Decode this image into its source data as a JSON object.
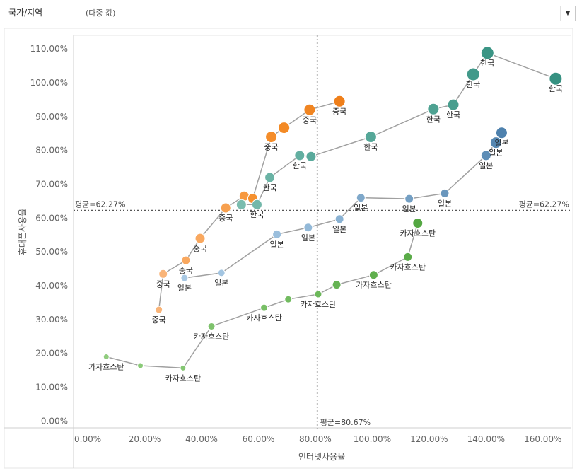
{
  "filter": {
    "label": "국가/지역",
    "value": "(다중 값)",
    "arrow_icon": "dropdown-arrow-icon"
  },
  "chart_data": {
    "type": "scatter",
    "xlabel": "인터넷사용율",
    "ylabel": "휴대폰사용율",
    "xlim": [
      -5,
      170
    ],
    "ylim": [
      -2,
      114
    ],
    "x_ticks": [
      "0.00%",
      "20.00%",
      "40.00%",
      "60.00%",
      "80.00%",
      "100.00%",
      "120.00%",
      "140.00%",
      "160.00%"
    ],
    "x_tick_values": [
      0,
      20,
      40,
      60,
      80,
      100,
      120,
      140,
      160
    ],
    "y_ticks": [
      "0.00%",
      "10.00%",
      "20.00%",
      "30.00%",
      "40.00%",
      "50.00%",
      "60.00%",
      "70.00%",
      "80.00%",
      "90.00%",
      "100.00%",
      "110.00%"
    ],
    "y_tick_values": [
      0,
      10,
      20,
      30,
      40,
      50,
      60,
      70,
      80,
      90,
      100,
      110
    ],
    "ref_lines": {
      "x": {
        "value": 80.67,
        "label": "평균=80.67%"
      },
      "y": {
        "value": 62.27,
        "label": "평균=62.27%",
        "label_left": "평균=62.27%"
      }
    },
    "series": [
      {
        "name": "중국",
        "colors": [
          "#f9b478",
          "#f9b478",
          "#f9a85f",
          "#f9a85f",
          "#f7a04f",
          "#f7993f",
          "#f5902e",
          "#f58d2a",
          "#f38a25",
          "#f08522",
          "#ef7f1a"
        ],
        "points": [
          {
            "x": 25,
            "y": 32.9,
            "label": "중국"
          },
          {
            "x": 26.5,
            "y": 43.5,
            "label": "중국"
          },
          {
            "x": 34.5,
            "y": 47.5,
            "label": "중국"
          },
          {
            "x": 39.5,
            "y": 54,
            "label": "중국"
          },
          {
            "x": 48.5,
            "y": 63,
            "label": "중국"
          },
          {
            "x": 55,
            "y": 66.5,
            "label": ""
          },
          {
            "x": 58,
            "y": 65.8,
            "label": ""
          },
          {
            "x": 64.5,
            "y": 84,
            "label": "중국"
          },
          {
            "x": 69,
            "y": 86.7,
            "label": ""
          },
          {
            "x": 78,
            "y": 92,
            "label": "중국"
          },
          {
            "x": 88.5,
            "y": 94.5,
            "label": "중국"
          }
        ],
        "sizes": [
          5,
          6,
          6,
          7,
          7,
          7,
          7,
          8,
          8,
          8,
          8
        ]
      },
      {
        "name": "한국",
        "colors": [
          "#7bbcae",
          "#73b8aa",
          "#6ab3a5",
          "#63afa1",
          "#5aaa9c",
          "#55a798",
          "#4ea292",
          "#489e8e",
          "#42998a",
          "#3b9585",
          "#369181",
          "#308c7c"
        ],
        "points": [
          {
            "x": 54,
            "y": 64,
            "label": ""
          },
          {
            "x": 59.5,
            "y": 64,
            "label": "한국"
          },
          {
            "x": 64,
            "y": 72,
            "label": "한국"
          },
          {
            "x": 74.5,
            "y": 78.5,
            "label": "한국"
          },
          {
            "x": 78.5,
            "y": 78.2,
            "label": ""
          },
          {
            "x": 99.5,
            "y": 84,
            "label": "한국"
          },
          {
            "x": 121.5,
            "y": 92.2,
            "label": "한국"
          },
          {
            "x": 128.5,
            "y": 93.5,
            "label": "한국"
          },
          {
            "x": 135.5,
            "y": 102.5,
            "label": "한국"
          },
          {
            "x": 140.5,
            "y": 108.8,
            "label": "한국"
          },
          {
            "x": 164.5,
            "y": 101.2,
            "label": "한국"
          }
        ],
        "sizes": [
          7,
          7,
          7,
          7,
          7,
          8,
          8,
          8,
          9,
          9,
          9
        ]
      },
      {
        "name": "일본",
        "colors": [
          "#a8c8e3",
          "#a3c5e1",
          "#9bbfdd",
          "#93b9d8",
          "#8ab2d3",
          "#7fa8ca",
          "#749fc3",
          "#6a97bd",
          "#5f8eb6",
          "#5687b1",
          "#4e81ad",
          "#487ba8"
        ],
        "points": [
          {
            "x": 34,
            "y": 42.3,
            "label": "일본"
          },
          {
            "x": 47,
            "y": 43.8,
            "label": "일본"
          },
          {
            "x": 66.5,
            "y": 55.2,
            "label": "일본"
          },
          {
            "x": 77.5,
            "y": 57.2,
            "label": "일본"
          },
          {
            "x": 88.5,
            "y": 59.7,
            "label": "일본"
          },
          {
            "x": 96,
            "y": 66,
            "label": "일본"
          },
          {
            "x": 113,
            "y": 65.7,
            "label": "일본"
          },
          {
            "x": 125.5,
            "y": 67.3,
            "label": "일본"
          },
          {
            "x": 140,
            "y": 78.5,
            "label": "일본"
          },
          {
            "x": 143.5,
            "y": 82.3,
            "label": "일본"
          },
          {
            "x": 145.5,
            "y": 85.2,
            "label": "일본"
          }
        ],
        "sizes": [
          5,
          5,
          6,
          6,
          6,
          6,
          6,
          6,
          7,
          8,
          8
        ]
      },
      {
        "name": "카자흐스탄",
        "colors": [
          "#90cc7e",
          "#8aca78",
          "#84c672",
          "#7ec26c",
          "#78bf66",
          "#72bb60",
          "#6cb85a",
          "#66b354",
          "#60af4e",
          "#5aab48",
          "#54a742",
          "#4ea33c"
        ],
        "points": [
          {
            "x": 6.5,
            "y": 19,
            "label": "카자흐스탄"
          },
          {
            "x": 18.5,
            "y": 16.4,
            "label": ""
          },
          {
            "x": 33.5,
            "y": 15.7,
            "label": "카자흐스탄"
          },
          {
            "x": 43.5,
            "y": 28,
            "label": "카자흐스탄"
          },
          {
            "x": 62,
            "y": 33.5,
            "label": "카자흐스탄"
          },
          {
            "x": 70.5,
            "y": 36,
            "label": ""
          },
          {
            "x": 81,
            "y": 37.5,
            "label": "카자흐스탄"
          },
          {
            "x": 87.5,
            "y": 40.3,
            "label": ""
          },
          {
            "x": 100.5,
            "y": 43.2,
            "label": "카자흐스탄"
          },
          {
            "x": 112.5,
            "y": 48.5,
            "label": "카자흐스탄"
          },
          {
            "x": 116,
            "y": 58.5,
            "label": "카자흐스탄"
          }
        ],
        "sizes": [
          4,
          4,
          4,
          5,
          5,
          5,
          5,
          6,
          6,
          6,
          7
        ]
      }
    ]
  }
}
